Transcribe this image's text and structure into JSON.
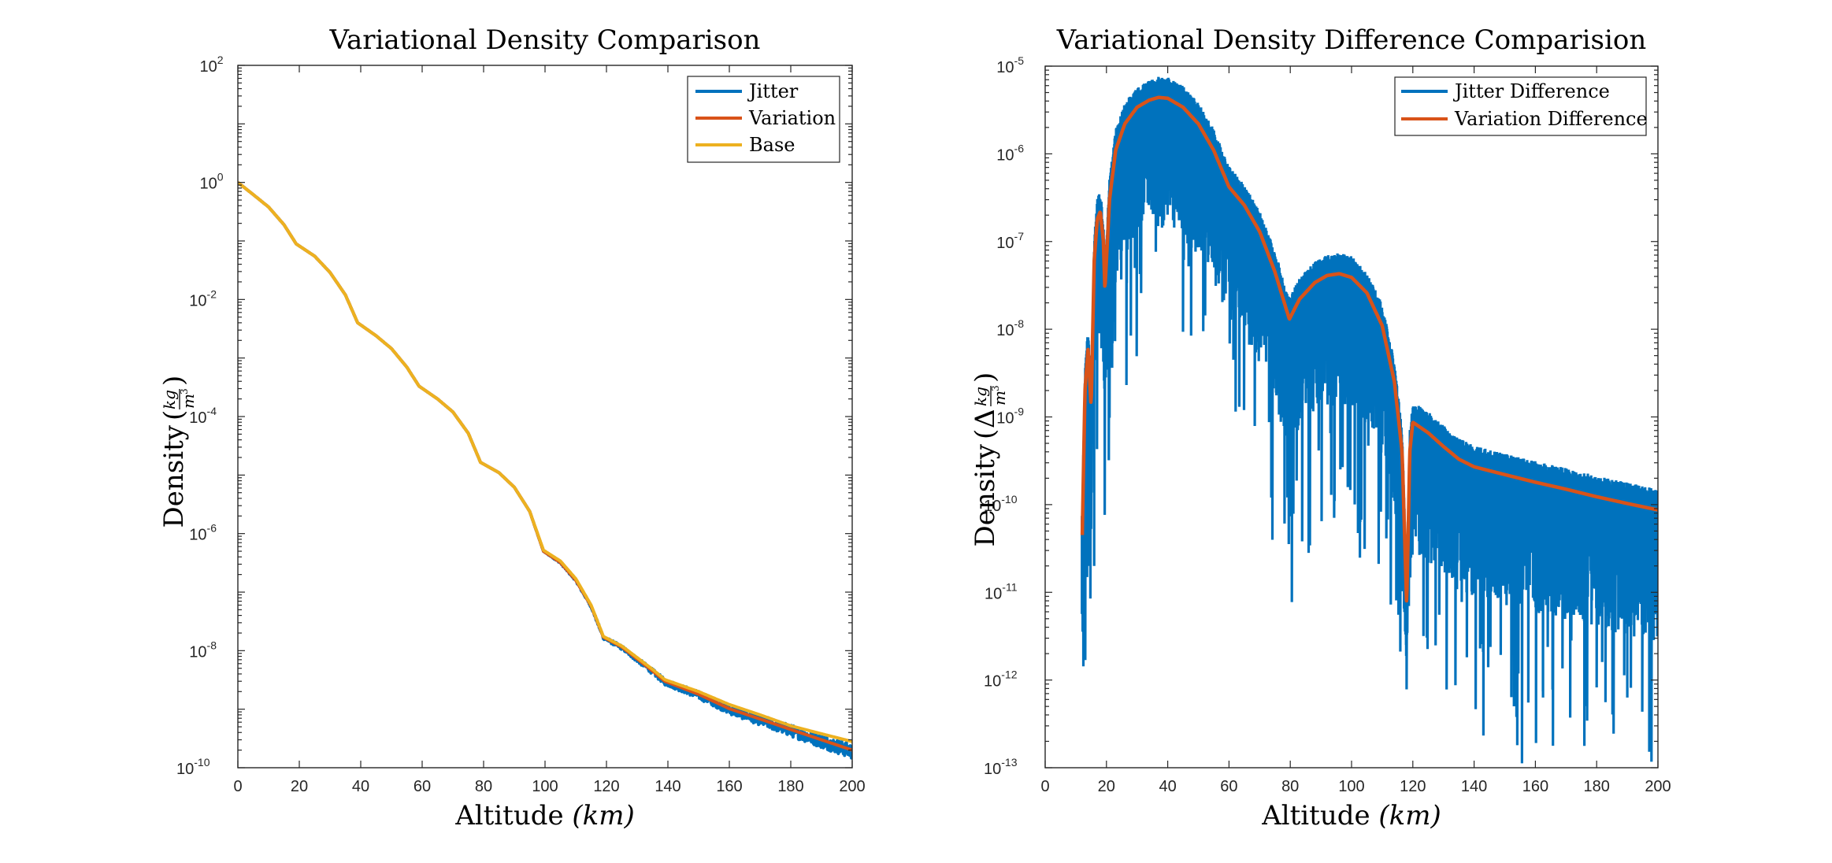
{
  "colors": {
    "jitter": "#0072BD",
    "variation": "#D95319",
    "base": "#EDB120",
    "axis": "#262626"
  },
  "chart_data": [
    {
      "type": "line",
      "title": "Variational Density Comparison",
      "xlabel": "Altitude (km)",
      "xlabel_main": "Altitude ",
      "xlabel_unit": "(km)",
      "ylabel": "Density (kg/m^3)",
      "ylabel_main": "Density ",
      "ylabel_unit_num": "kg",
      "ylabel_unit_den": "m",
      "ylabel_unit_pow": "3",
      "yscale": "log",
      "xlim": [
        0,
        200
      ],
      "ylim": [
        1e-10,
        100.0
      ],
      "xticks": [
        0,
        20,
        40,
        60,
        80,
        100,
        120,
        140,
        160,
        180,
        200
      ],
      "ytick_exponents": [
        -10,
        -8,
        -6,
        -4,
        -2,
        0,
        2
      ],
      "grid": false,
      "legend_position": "top-right",
      "legend": [
        "Jitter",
        "Variation",
        "Base"
      ],
      "series": [
        {
          "name": "Base",
          "color_key": "base",
          "x": [
            0,
            5,
            10,
            15,
            19,
            25,
            30,
            35,
            39,
            45,
            50,
            55,
            59,
            65,
            70,
            75,
            79,
            85,
            90,
            95,
            99.5,
            105,
            110,
            115,
            119,
            125,
            130,
            135,
            139,
            150,
            160,
            170,
            180,
            190,
            200
          ],
          "y": [
            1.0,
            0.62,
            0.38,
            0.19,
            0.089,
            0.055,
            0.029,
            0.012,
            0.004,
            0.0024,
            0.00145,
            0.0007,
            0.00033,
            0.0002,
            0.00012,
            5.2e-05,
            1.65e-05,
            1.1e-05,
            6.2e-06,
            2.4e-06,
            5.2e-07,
            3.4e-07,
            1.7e-07,
            6e-08,
            1.75e-08,
            1.2e-08,
            7.6e-09,
            4.8e-09,
            3.2e-09,
            2e-09,
            1.2e-09,
            8e-10,
            5.2e-10,
            3.8e-10,
            2.8e-10
          ]
        },
        {
          "name": "Variation",
          "color_key": "variation",
          "x": [
            0,
            5,
            10,
            15,
            19,
            25,
            30,
            35,
            39,
            45,
            50,
            55,
            59,
            65,
            70,
            75,
            79,
            85,
            90,
            95,
            99.5,
            105,
            110,
            115,
            119,
            125,
            130,
            135,
            139,
            150,
            160,
            170,
            180,
            190,
            200
          ],
          "y": [
            1.0,
            0.62,
            0.38,
            0.19,
            0.089,
            0.055,
            0.029,
            0.012,
            0.004,
            0.0024,
            0.00145,
            0.0007,
            0.00033,
            0.0002,
            0.00012,
            5.2e-05,
            1.65e-05,
            1.1e-05,
            6.2e-06,
            2.4e-06,
            5e-07,
            3.2e-07,
            1.6e-07,
            5.8e-08,
            1.7e-08,
            1.15e-08,
            7.2e-09,
            4.5e-09,
            3e-09,
            1.8e-09,
            1.02e-09,
            6.8e-10,
            4.5e-10,
            3e-10,
            2e-10
          ]
        },
        {
          "name": "Jitter",
          "color_key": "jitter",
          "description": "Variation curve with random noise; spread grows above ~100 km",
          "noise_start_km": 95,
          "noise_spread_decades_at_200": 0.25
        }
      ]
    },
    {
      "type": "line",
      "title": "Variational Density Difference Comparision",
      "xlabel": "Altitude (km)",
      "xlabel_main": "Altitude ",
      "xlabel_unit": "(km)",
      "ylabel": "Density (Δ kg/m^3)",
      "ylabel_main": "Density ",
      "ylabel_delta": "Δ",
      "ylabel_unit_num": "kg",
      "ylabel_unit_den": "m",
      "ylabel_unit_pow": "3",
      "yscale": "log",
      "xlim": [
        0,
        200
      ],
      "ylim": [
        1e-13,
        1e-05
      ],
      "xticks": [
        0,
        20,
        40,
        60,
        80,
        100,
        120,
        140,
        160,
        180,
        200
      ],
      "ytick_exponents": [
        -13,
        -12,
        -11,
        -10,
        -9,
        -8,
        -7,
        -6,
        -5
      ],
      "grid": false,
      "legend_position": "top-right",
      "legend": [
        "Jitter Difference",
        "Variation Difference"
      ],
      "series": [
        {
          "name": "Variation Difference",
          "color_key": "variation",
          "x": [
            12.1,
            13,
            14,
            15,
            16,
            17,
            18,
            19,
            19.5,
            21,
            23,
            26,
            30,
            34,
            37,
            40,
            45,
            50,
            55,
            60,
            65,
            70,
            75,
            79.7,
            83,
            88,
            92,
            96,
            100,
            105,
            110,
            114,
            116.5,
            118,
            119,
            120,
            125,
            130,
            135,
            140,
            150,
            160,
            170,
            180,
            190,
            200
          ],
          "y": [
            4.5e-11,
            2e-09,
            6e-09,
            1.3e-09,
            6e-08,
            1.8e-07,
            2.2e-07,
            1e-07,
            2.8e-08,
            3e-07,
            1.1e-06,
            2.2e-06,
            3.4e-06,
            4.1e-06,
            4.4e-06,
            4.3e-06,
            3.4e-06,
            2.2e-06,
            1.1e-06,
            4.2e-07,
            2.6e-07,
            1.3e-07,
            4.5e-08,
            1.3e-08,
            2.2e-08,
            3.4e-08,
            4.1e-08,
            4.3e-08,
            3.9e-08,
            2.6e-08,
            1.1e-08,
            2.5e-09,
            4e-10,
            7e-12,
            4e-10,
            8.7e-10,
            6.6e-10,
            4.6e-10,
            3.3e-10,
            2.7e-10,
            2.2e-10,
            1.8e-10,
            1.5e-10,
            1.23e-10,
            1.03e-10,
            8.7e-11
          ]
        },
        {
          "name": "Jitter Difference",
          "color_key": "jitter",
          "description": "Noisy difference; upper envelope roughly 1.6x the variation difference, with deep downward spikes",
          "upper_envelope_x": [
            12,
            37,
            96,
            120,
            140,
            200
          ],
          "upper_envelope_y": [
            9e-09,
            7.5e-06,
            7.4e-08,
            1.4e-09,
            4.2e-10,
            1.5e-10
          ],
          "min_spike_y": 1.8e-13,
          "min_spike_x": 176
        }
      ]
    }
  ]
}
